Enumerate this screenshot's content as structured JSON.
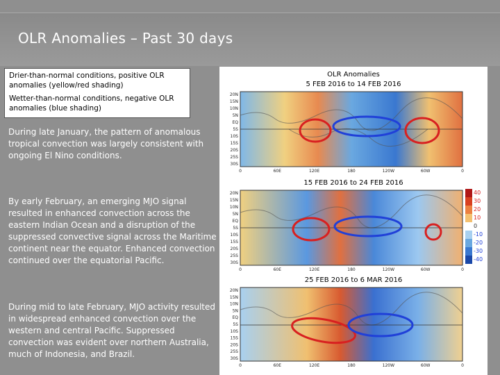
{
  "slide": {
    "title": "OLR Anomalies – Past 30 days"
  },
  "legend": {
    "drier": "Drier-than-normal conditions, positive OLR anomalies (yellow/red shading)",
    "wetter": "Wetter-than-normal conditions, negative OLR anomalies (blue shading)"
  },
  "paragraphs": [
    "During late January, the pattern of anomalous tropical convection was largely consistent with ongoing El Nino conditions.",
    "By early February, an emerging MJO signal resulted in enhanced convection across the eastern Indian Ocean and a disruption of the suppressed convective signal across the Maritime continent near the equator. Enhanced convection continued over the equatorial Pacific.",
    "During mid to late February, MJO activity resulted in widespread enhanced convection over the western and central Pacific. Suppressed convection was evident over northern Australia, much of Indonesia, and Brazil."
  ],
  "maps": {
    "header": "OLR Anomalies",
    "panels": [
      {
        "period": "5 FEB 2016 to 14 FEB 2016"
      },
      {
        "period": "15 FEB 2016 to 24 FEB 2016"
      },
      {
        "period": "25 FEB 2016 to 6 MAR 2016"
      }
    ],
    "lat_labels": [
      "20N",
      "15N",
      "10N",
      "5N",
      "EQ",
      "5S",
      "10S",
      "15S",
      "20S",
      "25S",
      "30S"
    ],
    "lon_labels_top": [
      "0",
      "60E",
      "120E",
      "180",
      "120W",
      "60W",
      "0"
    ],
    "lon_labels_mid": [
      "0",
      "60E",
      "120E",
      "180",
      "120W",
      "60W",
      "0"
    ],
    "lon_labels_bot": [
      "0",
      "60E",
      "120E",
      "180",
      "120W",
      "60W",
      "0"
    ],
    "colorbar": [
      "40",
      "30",
      "20",
      "10",
      "0",
      "-10",
      "-20",
      "-30",
      "-40"
    ],
    "colors": {
      "red": "#d82020",
      "blue": "#2040d8",
      "dry": "#e8a060",
      "wet": "#5aa0e0"
    }
  }
}
